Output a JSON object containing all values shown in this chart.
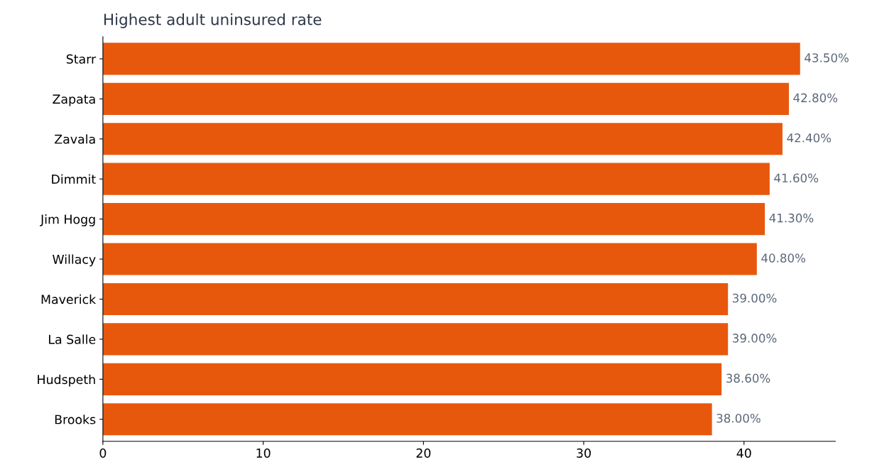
{
  "chart_data": {
    "type": "bar",
    "orientation": "horizontal",
    "title": "Highest adult uninsured rate",
    "categories": [
      "Starr",
      "Zapata",
      "Zavala",
      "Dimmit",
      "Jim Hogg",
      "Willacy",
      "Maverick",
      "La Salle",
      "Hudspeth",
      "Brooks"
    ],
    "values": [
      43.5,
      42.8,
      42.4,
      41.6,
      41.3,
      40.8,
      39.0,
      39.0,
      38.6,
      38.0
    ],
    "value_labels": [
      "43.50%",
      "42.80%",
      "42.40%",
      "41.60%",
      "41.30%",
      "40.80%",
      "39.00%",
      "39.00%",
      "38.60%",
      "38.00%"
    ],
    "color": "#e8580c",
    "xlim": [
      0,
      45.7
    ],
    "xticks": [
      0,
      10,
      20,
      30,
      40
    ],
    "grid": false,
    "legend": false
  }
}
